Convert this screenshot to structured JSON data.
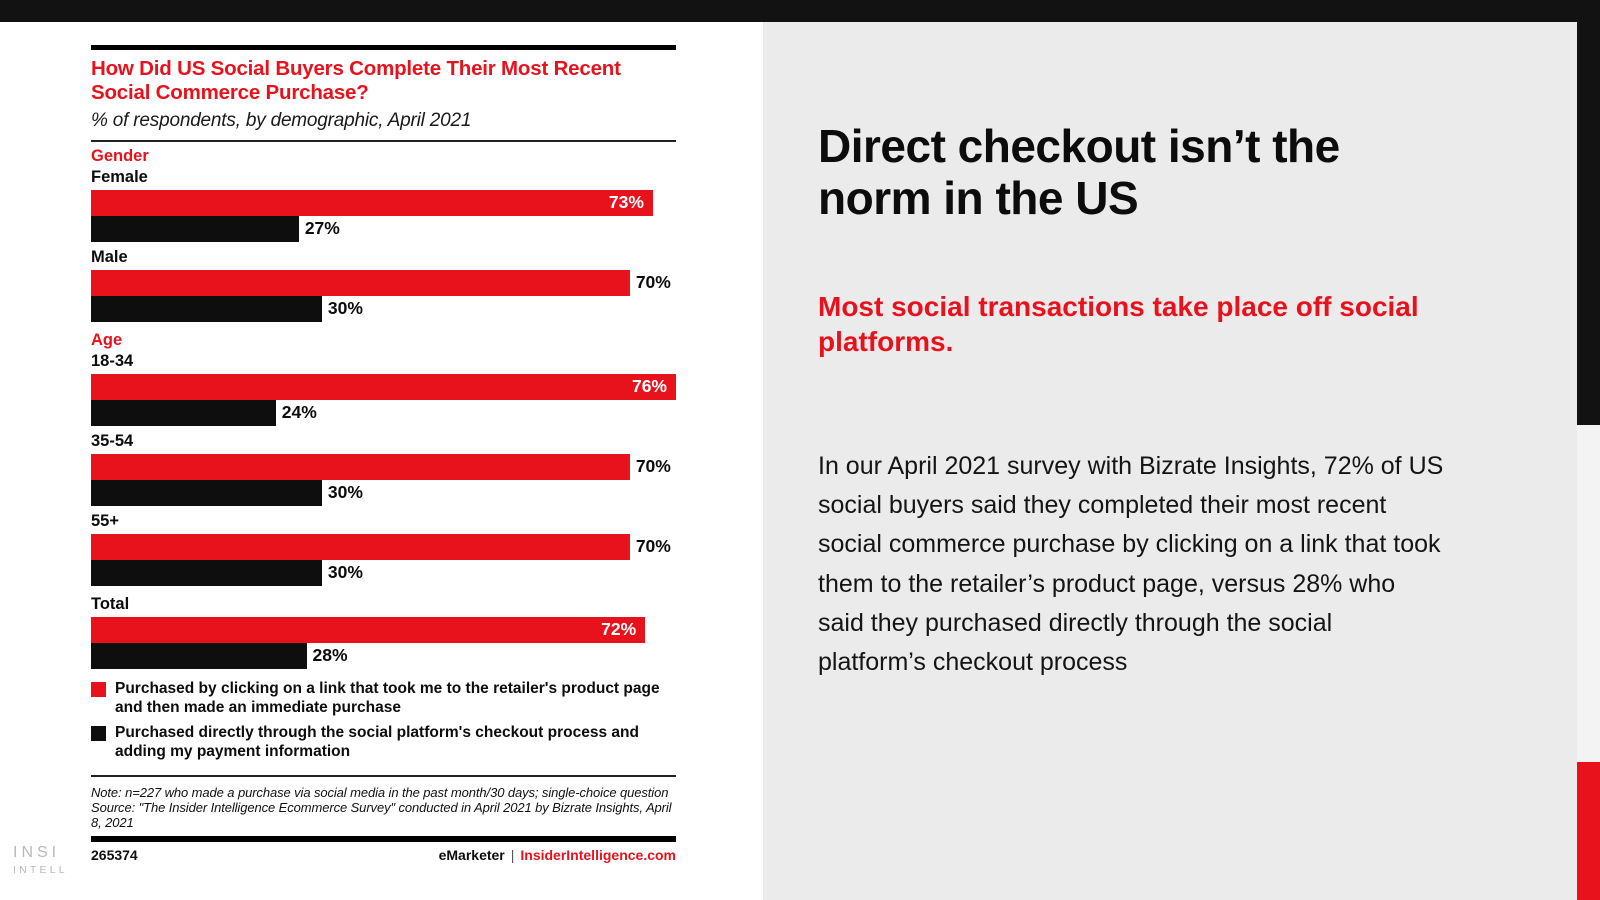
{
  "colors": {
    "accent_red": "#e8121d",
    "bar_black": "#0e0e0e",
    "panel_gray": "#ebebeb",
    "strip_black": "#121212",
    "strip_light": "#f3f3f3",
    "watermark_gray": "#b9b9b9"
  },
  "chart_data": {
    "type": "bar",
    "orientation": "horizontal",
    "title": "How Did US Social Buyers Complete Their Most Recent Social Commerce Purchase?",
    "subtitle": "% of respondents, by demographic, April 2021",
    "axis_max": 76,
    "unit": "%",
    "series_names": [
      "Purchased by clicking on a link that took me to the retailer's product page and then made an immediate purchase",
      "Purchased directly through the social platform's checkout process and adding my payment information"
    ],
    "groups": [
      {
        "label": "Gender",
        "rows": [
          {
            "category": "Female",
            "link_pct": 73,
            "direct_pct": 27,
            "link_label_inside": true
          },
          {
            "category": "Male",
            "link_pct": 70,
            "direct_pct": 30,
            "link_label_inside": false
          }
        ]
      },
      {
        "label": "Age",
        "rows": [
          {
            "category": "18-34",
            "link_pct": 76,
            "direct_pct": 24,
            "link_label_inside": true
          },
          {
            "category": "35-54",
            "link_pct": 70,
            "direct_pct": 30,
            "link_label_inside": false
          },
          {
            "category": "55+",
            "link_pct": 70,
            "direct_pct": 30,
            "link_label_inside": false
          }
        ]
      },
      {
        "label": "",
        "rows": [
          {
            "category": "Total",
            "link_pct": 72,
            "direct_pct": 28,
            "link_label_inside": true
          }
        ]
      }
    ],
    "legend": [
      {
        "color": "#e8121d",
        "label": "Purchased by clicking on a link that took me to the retailer's product page and then made an immediate purchase"
      },
      {
        "color": "#0e0e0e",
        "label": "Purchased directly through the social platform's checkout process and adding my payment information"
      }
    ]
  },
  "note": {
    "note_line": "Note: n=227 who made a purchase via social media in the past month/30 days; single-choice question",
    "source_line": "Source: \"The Insider Intelligence Ecommerce Survey\" conducted in April 2021 by Bizrate Insights, April 8, 2021"
  },
  "footer": {
    "chart_id": "265374",
    "brand_left": "eMarketer",
    "separator": "|",
    "brand_right": "InsiderIntelligence.com"
  },
  "watermark": {
    "line1": "INSI",
    "line2": "INTELL"
  },
  "panel": {
    "headline": "Direct checkout isn’t the norm in the US",
    "subhead": "Most social transactions take place off social platforms.",
    "body": "In our April 2021 survey with Bizrate Insights, 72% of US social buyers said they completed their most recent social commerce purchase by clicking on a link that took them to the retailer’s product page, versus 28% who said they purchased directly through the social platform’s checkout process"
  }
}
